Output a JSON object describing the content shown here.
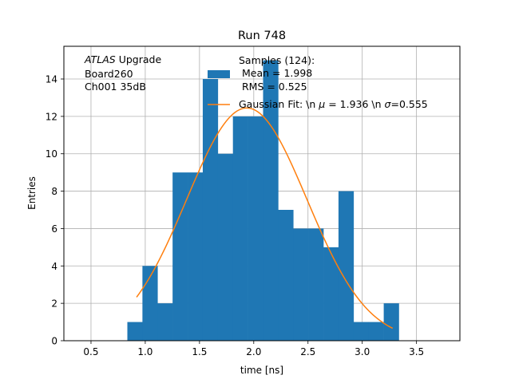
{
  "chart_data": {
    "type": "bar",
    "title": "Run 748",
    "xlabel": "time [ns]",
    "ylabel": "Entries",
    "xlim": [
      0.25,
      3.9
    ],
    "ylim": [
      0,
      15.75
    ],
    "grid": true,
    "xticks": [
      0.5,
      1.0,
      1.5,
      2.0,
      2.5,
      3.0,
      3.5
    ],
    "xtick_labels": [
      "0.5",
      "1.0",
      "1.5",
      "2.0",
      "2.5",
      "3.0",
      "3.5"
    ],
    "yticks": [
      0,
      2,
      4,
      6,
      8,
      10,
      12,
      14
    ],
    "ytick_labels": [
      "0",
      "2",
      "4",
      "6",
      "8",
      "10",
      "12",
      "14"
    ],
    "annotation_lines": [
      "Upgrade",
      "Board260",
      "Ch001 35dB"
    ],
    "annotation_italic": "ATLAS",
    "histogram": {
      "color": "#1f77b4",
      "bin_edges": [
        0.835,
        0.974,
        1.113,
        1.252,
        1.391,
        1.53,
        1.669,
        1.808,
        1.947,
        2.086,
        2.225,
        2.364,
        2.503,
        2.642,
        2.781,
        2.92,
        3.059,
        3.198,
        3.337
      ],
      "counts": [
        1,
        4,
        2,
        9,
        9,
        14,
        10,
        12,
        12,
        15,
        7,
        6,
        6,
        5,
        8,
        1,
        1,
        2
      ]
    },
    "fit_curve": {
      "color": "#ff7f0e",
      "mu": 1.936,
      "sigma": 0.555,
      "amplitude": 12.45,
      "x_range": [
        0.92,
        3.28
      ]
    },
    "legend": {
      "placement": "top-center",
      "hist_label_lines": [
        "Samples (124):",
        " Mean = 1.998",
        " RMS = 0.525"
      ],
      "fit_label": "Gaussian Fit: \\n $\\mu$ = 1.936 \\n $\\sigma$=0.555"
    }
  }
}
